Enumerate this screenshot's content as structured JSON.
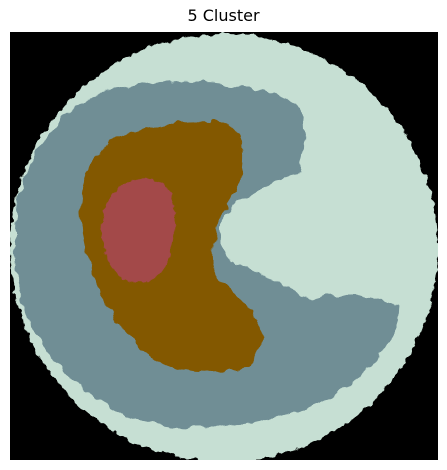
{
  "title": "5 Cluster",
  "image": {
    "description_free": true,
    "clusters": [
      {
        "label": "",
        "color": "#000000"
      },
      {
        "label": "",
        "color": "#c6dfd3"
      },
      {
        "label": "",
        "color": "#6f8e95"
      },
      {
        "label": "",
        "color": "#835806"
      },
      {
        "label": "",
        "color": "#a34848"
      }
    ]
  }
}
